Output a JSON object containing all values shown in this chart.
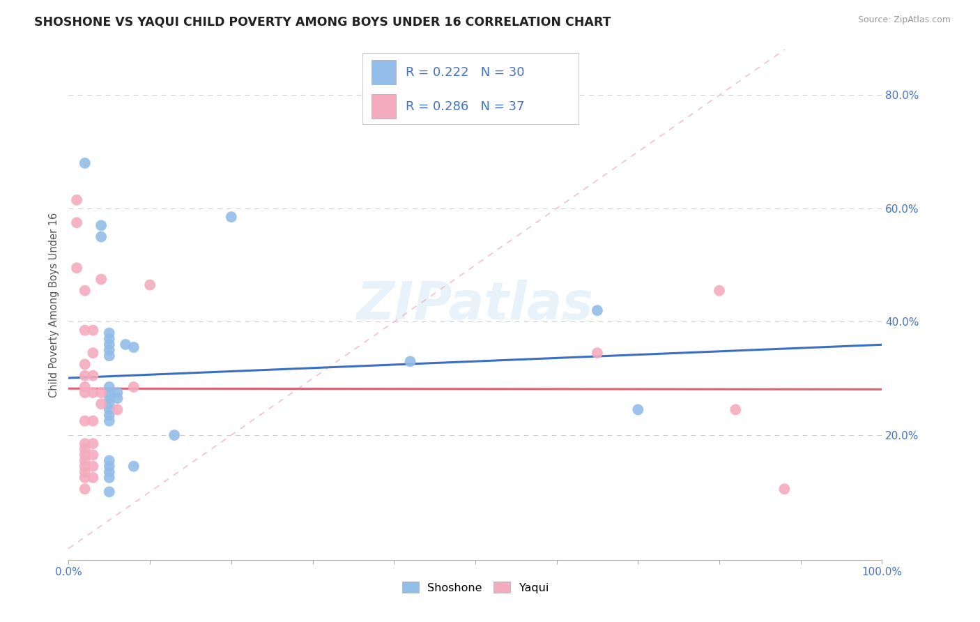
{
  "title": "SHOSHONE VS YAQUI CHILD POVERTY AMONG BOYS UNDER 16 CORRELATION CHART",
  "source": "Source: ZipAtlas.com",
  "ylabel": "Child Poverty Among Boys Under 16",
  "shoshone_color": "#92BDE8",
  "yaqui_color": "#F4ABBE",
  "shoshone_line_color": "#3B6EC4",
  "yaqui_line_color": "#E06070",
  "diagonal_color": "#F0B0C0",
  "legend_text_color": "#4472C4",
  "R_shoshone": 0.222,
  "N_shoshone": 30,
  "R_yaqui": 0.286,
  "N_yaqui": 37,
  "shoshone_points": [
    [
      0.02,
      0.68
    ],
    [
      0.04,
      0.57
    ],
    [
      0.04,
      0.55
    ],
    [
      0.05,
      0.38
    ],
    [
      0.05,
      0.37
    ],
    [
      0.05,
      0.36
    ],
    [
      0.05,
      0.35
    ],
    [
      0.05,
      0.34
    ],
    [
      0.05,
      0.285
    ],
    [
      0.05,
      0.275
    ],
    [
      0.05,
      0.265
    ],
    [
      0.05,
      0.255
    ],
    [
      0.05,
      0.245
    ],
    [
      0.05,
      0.235
    ],
    [
      0.05,
      0.225
    ],
    [
      0.05,
      0.155
    ],
    [
      0.05,
      0.145
    ],
    [
      0.05,
      0.135
    ],
    [
      0.05,
      0.125
    ],
    [
      0.05,
      0.1
    ],
    [
      0.06,
      0.275
    ],
    [
      0.06,
      0.265
    ],
    [
      0.07,
      0.36
    ],
    [
      0.08,
      0.355
    ],
    [
      0.08,
      0.145
    ],
    [
      0.13,
      0.2
    ],
    [
      0.2,
      0.585
    ],
    [
      0.42,
      0.33
    ],
    [
      0.65,
      0.42
    ],
    [
      0.7,
      0.245
    ]
  ],
  "yaqui_points": [
    [
      0.01,
      0.615
    ],
    [
      0.01,
      0.575
    ],
    [
      0.01,
      0.495
    ],
    [
      0.02,
      0.455
    ],
    [
      0.02,
      0.385
    ],
    [
      0.02,
      0.325
    ],
    [
      0.02,
      0.305
    ],
    [
      0.02,
      0.285
    ],
    [
      0.02,
      0.275
    ],
    [
      0.02,
      0.225
    ],
    [
      0.02,
      0.185
    ],
    [
      0.02,
      0.175
    ],
    [
      0.02,
      0.165
    ],
    [
      0.02,
      0.155
    ],
    [
      0.02,
      0.145
    ],
    [
      0.02,
      0.135
    ],
    [
      0.02,
      0.125
    ],
    [
      0.02,
      0.105
    ],
    [
      0.03,
      0.385
    ],
    [
      0.03,
      0.345
    ],
    [
      0.03,
      0.305
    ],
    [
      0.03,
      0.275
    ],
    [
      0.03,
      0.225
    ],
    [
      0.03,
      0.185
    ],
    [
      0.03,
      0.165
    ],
    [
      0.03,
      0.145
    ],
    [
      0.03,
      0.125
    ],
    [
      0.04,
      0.475
    ],
    [
      0.04,
      0.275
    ],
    [
      0.04,
      0.255
    ],
    [
      0.06,
      0.245
    ],
    [
      0.08,
      0.285
    ],
    [
      0.1,
      0.465
    ],
    [
      0.65,
      0.345
    ],
    [
      0.8,
      0.455
    ],
    [
      0.82,
      0.245
    ],
    [
      0.88,
      0.105
    ]
  ]
}
